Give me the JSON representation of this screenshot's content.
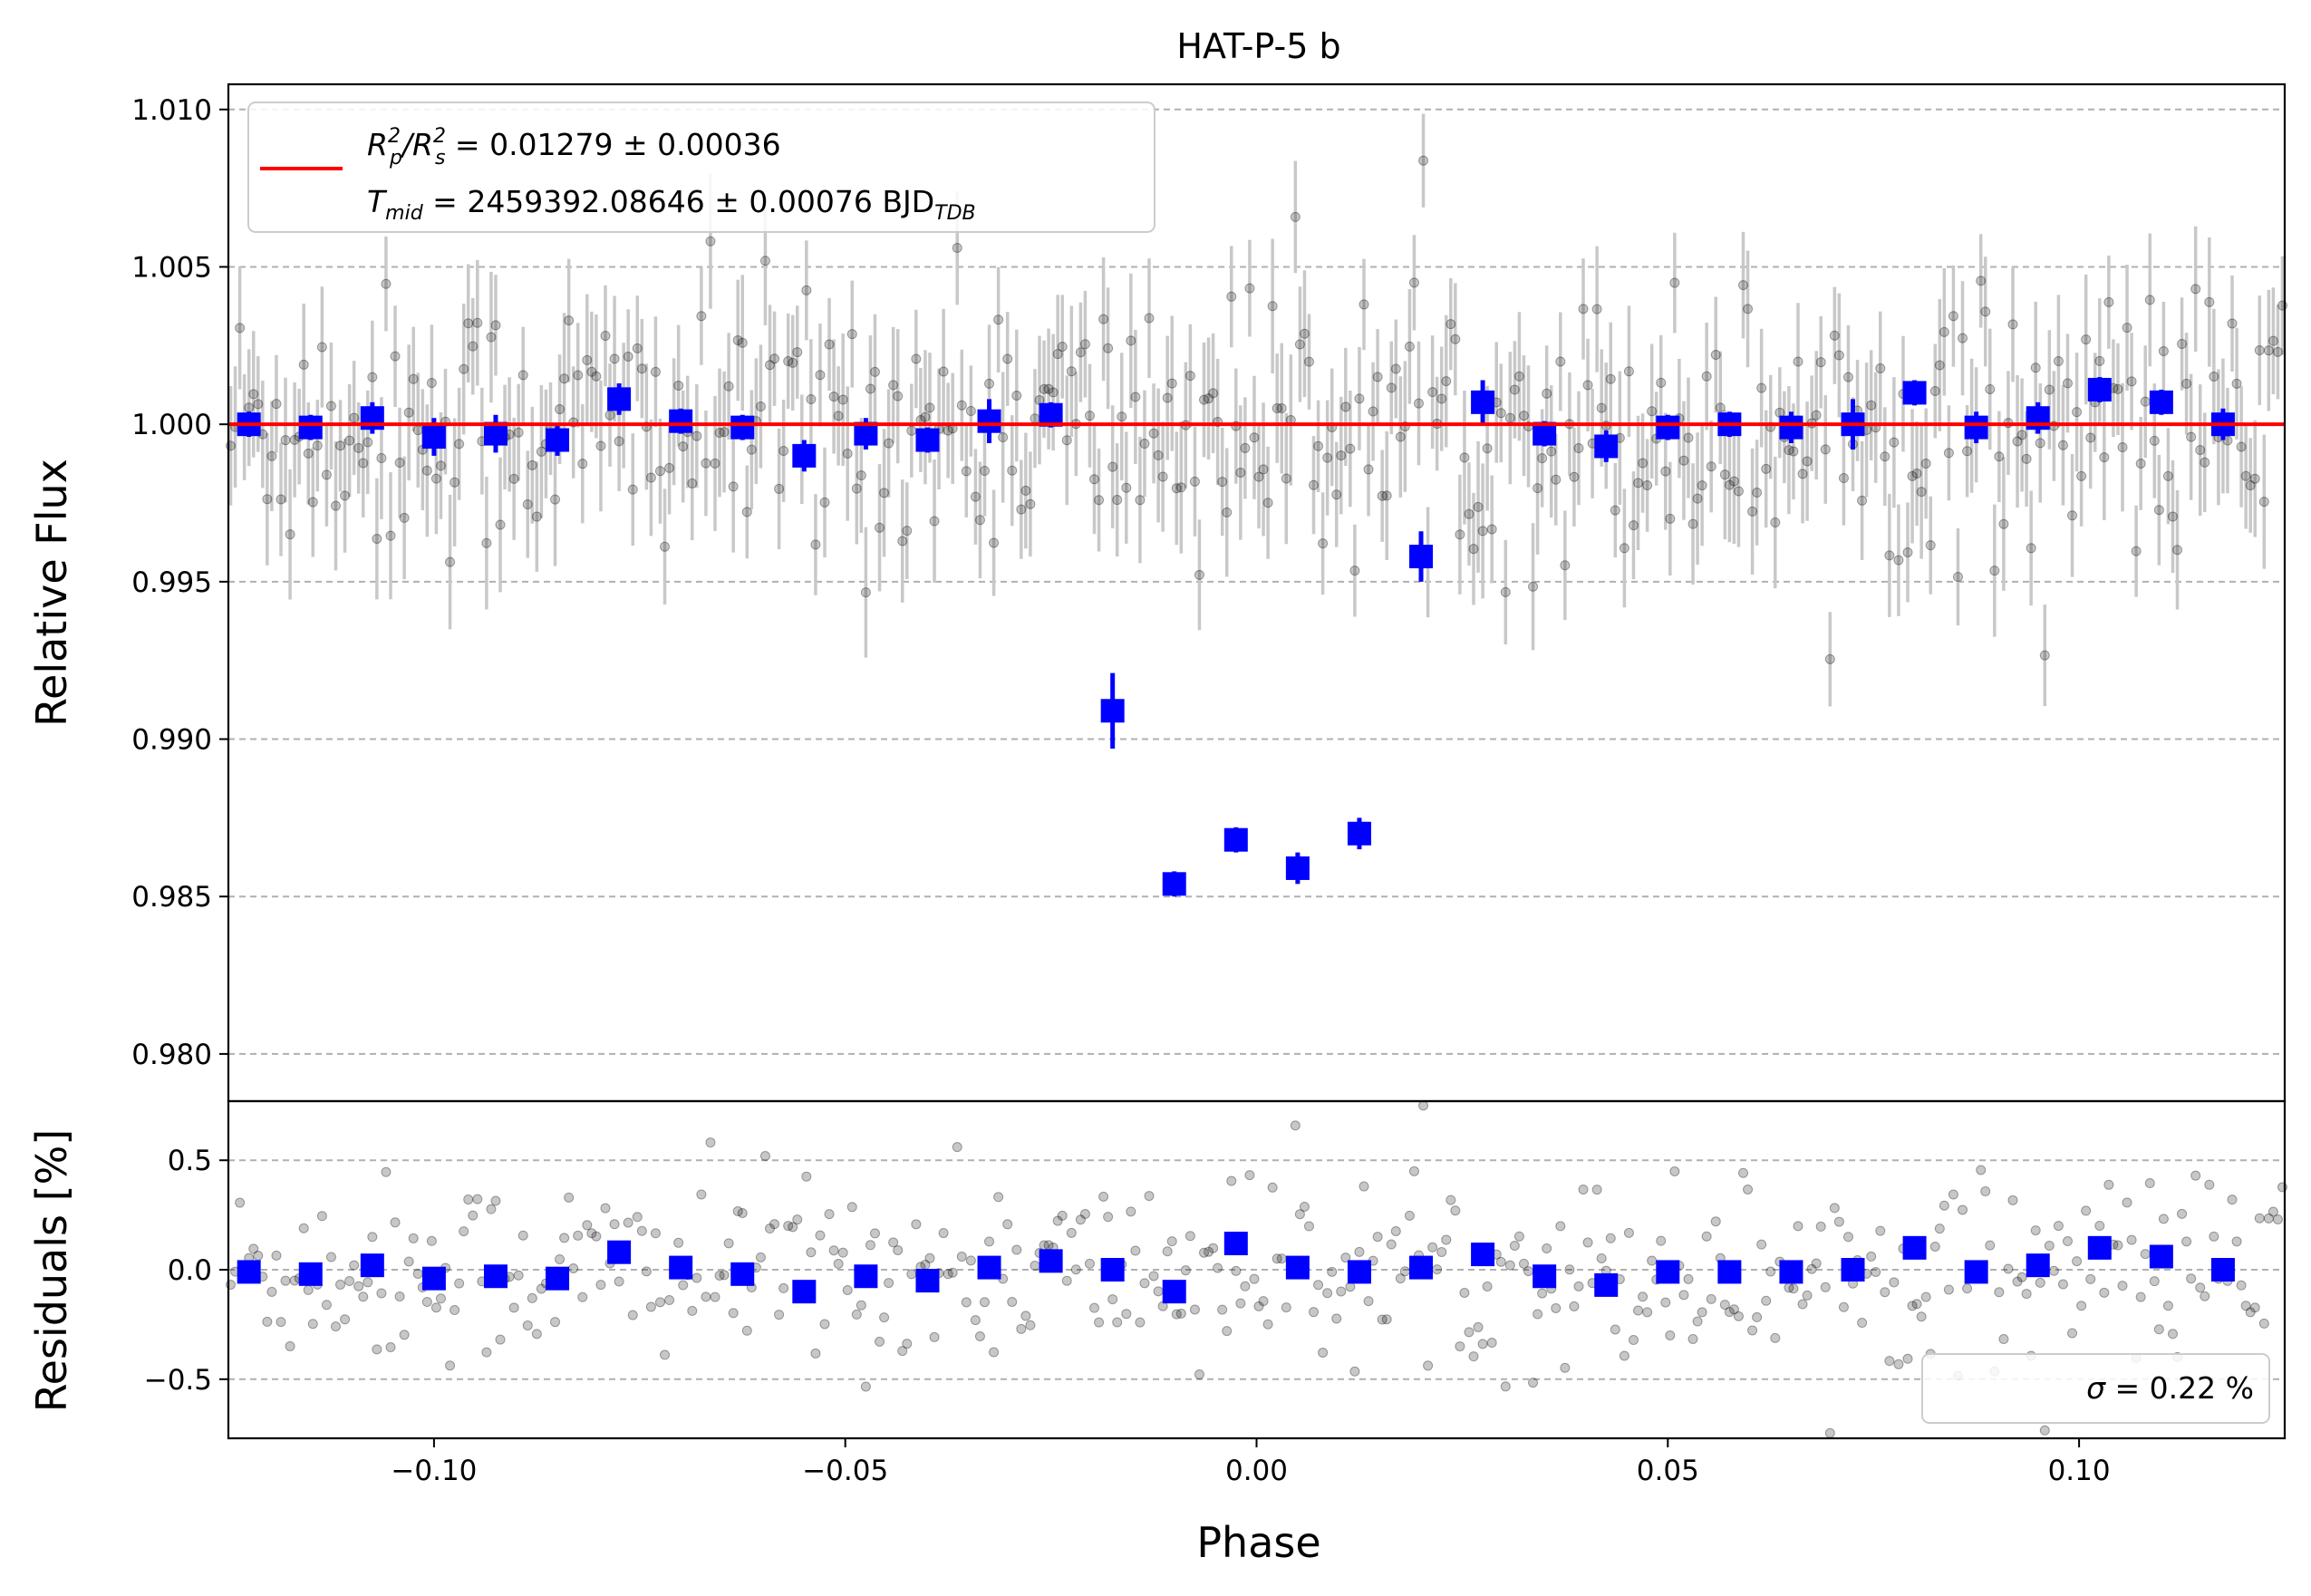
{
  "chart_data": [
    {
      "panel": "light-curve",
      "type": "scatter",
      "title": "HAT-P-5 b",
      "xlabel": "",
      "ylabel": "Relative Flux",
      "xlim": [
        -0.125,
        0.125
      ],
      "ylim": [
        0.9785,
        1.0108
      ],
      "yticks": [
        0.98,
        0.985,
        0.99,
        0.995,
        1.0,
        1.005,
        1.01
      ],
      "ytick_labels": [
        "0.980",
        "0.985",
        "0.990",
        "0.995",
        "1.000",
        "1.005",
        "1.010"
      ],
      "grid": "horizontal dashed",
      "legend_position": "top-left",
      "legend": {
        "line1_prefix": "R",
        "line1_sub1": "p",
        "line1_sup1": "2",
        "line1_mid": "/R",
        "line1_sub2": "s",
        "line1_sup2": "2",
        "line1_value": " = 0.01279 ± 0.00036",
        "line2_prefix": "T",
        "line2_sub": "mid",
        "line2_value": " = 2459392.08646 ± 0.00076 BJD",
        "line2_suffix_sub": "TDB"
      },
      "colors": {
        "model": "#ff0000",
        "binned": "#0000ff",
        "raw": "#000000",
        "raw_error": "#c8c8c8"
      },
      "model": {
        "baseline": 1.0,
        "depth": 0.01279,
        "t_contact_1": -0.0222,
        "t_contact_2": -0.0168,
        "min_flux": 0.9855
      },
      "binned": {
        "x": [
          -0.1225,
          -0.115,
          -0.1075,
          -0.1,
          -0.0925,
          -0.085,
          -0.0775,
          -0.07,
          -0.0625,
          -0.055,
          -0.0475,
          -0.04,
          -0.0325,
          -0.025,
          -0.0175,
          -0.01,
          -0.0025,
          0.005,
          0.0125,
          0.02,
          0.0275,
          0.035,
          0.0425,
          0.05,
          0.0575,
          0.065,
          0.0725,
          0.08,
          0.0875,
          0.095,
          0.1025,
          0.11,
          0.1175
        ],
        "y": [
          1.0,
          0.9999,
          1.0002,
          0.9996,
          0.9997,
          0.9995,
          1.0008,
          1.0001,
          0.9999,
          0.999,
          0.9997,
          0.9995,
          1.0001,
          1.0003,
          0.9909,
          0.9854,
          0.9868,
          0.9859,
          0.987,
          0.9958,
          1.0007,
          0.9997,
          0.9993,
          0.9999,
          1.0,
          0.9999,
          1.0,
          1.001,
          0.9999,
          1.0002,
          1.0011,
          1.0007,
          1.0
        ],
        "err": [
          0.0004,
          0.0004,
          0.0005,
          0.0006,
          0.0006,
          0.0005,
          0.0005,
          0.0004,
          0.0004,
          0.0005,
          0.0005,
          0.0004,
          0.0007,
          0.0004,
          0.0012,
          0.0004,
          0.0004,
          0.0005,
          0.0005,
          0.0008,
          0.0007,
          0.0004,
          0.0005,
          0.0004,
          0.0004,
          0.0005,
          0.0008,
          0.0004,
          0.0005,
          0.0005,
          0.0004,
          0.0004,
          0.0005
        ]
      },
      "raw_points": {
        "count": 450,
        "scatter_sigma": 0.0022,
        "error_bar": 0.0018
      }
    },
    {
      "panel": "residuals",
      "type": "scatter",
      "xlabel": "Phase",
      "ylabel": "Residuals [%]",
      "xlim": [
        -0.125,
        0.125
      ],
      "ylim": [
        -0.77,
        0.77
      ],
      "xticks": [
        -0.1,
        -0.05,
        0.0,
        0.05,
        0.1
      ],
      "xtick_labels": [
        "−0.10",
        "−0.05",
        "0.00",
        "0.05",
        "0.10"
      ],
      "yticks": [
        -0.5,
        0.0,
        0.5
      ],
      "ytick_labels": [
        "−0.5",
        "0.0",
        "0.5"
      ],
      "grid": "horizontal dashed",
      "legend_position": "bottom-right",
      "legend": {
        "sigma_symbol": "σ",
        "sigma_text": " = 0.22 %"
      },
      "binned": {
        "x": [
          -0.1225,
          -0.115,
          -0.1075,
          -0.1,
          -0.0925,
          -0.085,
          -0.0775,
          -0.07,
          -0.0625,
          -0.055,
          -0.0475,
          -0.04,
          -0.0325,
          -0.025,
          -0.0175,
          -0.01,
          -0.0025,
          0.005,
          0.0125,
          0.02,
          0.0275,
          0.035,
          0.0425,
          0.05,
          0.0575,
          0.065,
          0.0725,
          0.08,
          0.0875,
          0.095,
          0.1025,
          0.11,
          0.1175
        ],
        "y": [
          -0.01,
          -0.02,
          0.02,
          -0.04,
          -0.03,
          -0.04,
          0.08,
          0.01,
          -0.02,
          -0.1,
          -0.03,
          -0.05,
          0.01,
          0.04,
          0.0,
          -0.1,
          0.12,
          0.01,
          -0.01,
          0.01,
          0.07,
          -0.03,
          -0.07,
          -0.01,
          -0.01,
          -0.01,
          0.0,
          0.1,
          -0.01,
          0.02,
          0.1,
          0.06,
          0.0
        ]
      },
      "raw_points": {
        "scatter_sigma": 0.22
      }
    }
  ]
}
